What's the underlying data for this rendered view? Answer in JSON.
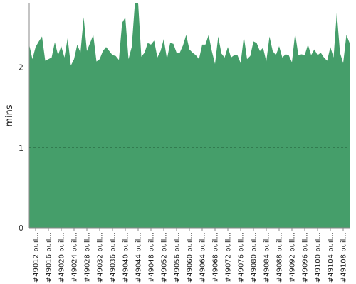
{
  "chart_data": {
    "type": "area",
    "title": "",
    "xlabel": "",
    "ylabel": "mins",
    "ylim": [
      0,
      2.8
    ],
    "yticks": [
      0,
      1,
      2
    ],
    "grid": "horizontal-dashed",
    "legend": "none",
    "fill_color": "#459e6a",
    "tick_labels": [
      "#49012 buil...",
      "#49016 buil...",
      "#49020 buil...",
      "#49024 buil...",
      "#49028 buil...",
      "#49032 buil...",
      "#49036 buil...",
      "#49040 buil...",
      "#49044 buil...",
      "#49048 buil...",
      "#49052 buil...",
      "#49056 buil...",
      "#49060 buil...",
      "#49064 buil...",
      "#49068 buil...",
      "#49072 buil...",
      "#49076 buil...",
      "#49080 buil...",
      "#49084 buil...",
      "#49088 buil...",
      "#49092 buil...",
      "#49096 buil...",
      "#49100 buil...",
      "#49104 buil...",
      "#49108 buil..."
    ],
    "x": [
      49010,
      49011,
      49012,
      49013,
      49014,
      49015,
      49016,
      49017,
      49018,
      49019,
      49020,
      49021,
      49022,
      49023,
      49024,
      49025,
      49026,
      49027,
      49028,
      49029,
      49030,
      49031,
      49032,
      49033,
      49034,
      49035,
      49036,
      49037,
      49038,
      49039,
      49040,
      49041,
      49042,
      49043,
      49044,
      49045,
      49046,
      49047,
      49048,
      49049,
      49050,
      49051,
      49052,
      49053,
      49054,
      49055,
      49056,
      49057,
      49058,
      49059,
      49060,
      49061,
      49062,
      49063,
      49064,
      49065,
      49066,
      49067,
      49068,
      49069,
      49070,
      49071,
      49072,
      49073,
      49074,
      49075,
      49076,
      49077,
      49078,
      49079,
      49080,
      49081,
      49082,
      49083,
      49084,
      49085,
      49086,
      49087,
      49088,
      49089,
      49090,
      49091,
      49092,
      49093,
      49094,
      49095,
      49096,
      49097,
      49098,
      49099,
      49100,
      49101,
      49102,
      49103,
      49104,
      49105,
      49106,
      49107,
      49108,
      49109,
      49110
    ],
    "values": [
      2.28,
      2.1,
      2.25,
      2.32,
      2.38,
      2.08,
      2.1,
      2.12,
      2.31,
      2.15,
      2.26,
      2.12,
      2.36,
      2.02,
      2.1,
      2.28,
      2.18,
      2.62,
      2.2,
      2.3,
      2.4,
      2.07,
      2.1,
      2.2,
      2.25,
      2.2,
      2.15,
      2.14,
      2.09,
      2.55,
      2.62,
      2.1,
      2.25,
      2.8,
      2.8,
      2.13,
      2.18,
      2.3,
      2.28,
      2.33,
      2.12,
      2.2,
      2.35,
      2.1,
      2.3,
      2.29,
      2.18,
      2.18,
      2.27,
      2.4,
      2.22,
      2.18,
      2.15,
      2.1,
      2.28,
      2.28,
      2.4,
      2.2,
      2.04,
      2.38,
      2.17,
      2.12,
      2.25,
      2.12,
      2.15,
      2.15,
      2.05,
      2.38,
      2.1,
      2.14,
      2.32,
      2.3,
      2.2,
      2.24,
      2.07,
      2.38,
      2.2,
      2.15,
      2.26,
      2.12,
      2.16,
      2.15,
      2.06,
      2.42,
      2.15,
      2.16,
      2.15,
      2.28,
      2.15,
      2.22,
      2.15,
      2.18,
      2.12,
      2.08,
      2.25,
      2.12,
      2.68,
      2.18,
      2.05,
      2.4,
      2.3
    ]
  }
}
